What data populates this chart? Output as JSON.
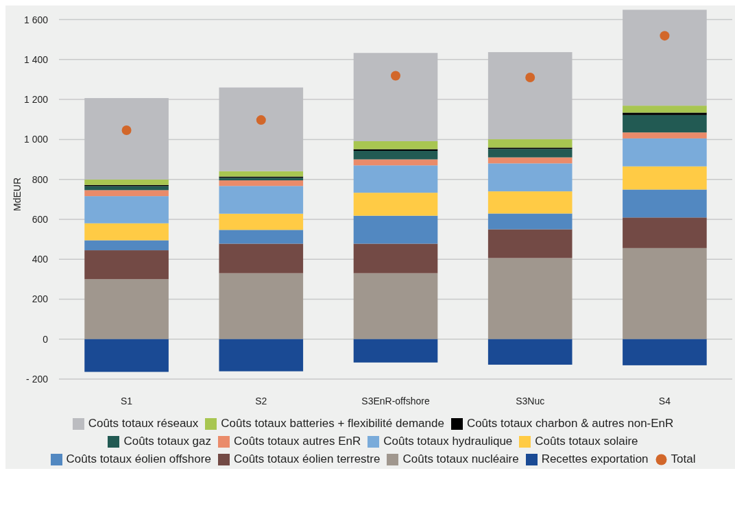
{
  "chart_data": {
    "type": "bar",
    "stacked": true,
    "ylabel": "MdEUR",
    "categories": [
      "S1",
      "S2",
      "S3EnR-offshore",
      "S3Nuc",
      "S4"
    ],
    "ylim": [
      -200,
      1650
    ],
    "yticks": [
      {
        "value": -200,
        "label": "- 200"
      },
      0,
      200,
      400,
      600,
      800,
      {
        "value": 1000,
        "label": "1 000"
      },
      {
        "value": 1200,
        "label": "1 200"
      },
      {
        "value": 1400,
        "label": "1 400"
      },
      {
        "value": 1600,
        "label": "1 600"
      }
    ],
    "grid": "y",
    "legend": "bottom",
    "series": [
      {
        "name": "Coûts totaux nucléaire",
        "color": "#a0978e",
        "values": [
          300,
          330,
          330,
          406,
          456
        ]
      },
      {
        "name": "Coûts totaux éolien terrestre",
        "color": "#734a45",
        "values": [
          145,
          148,
          148,
          144,
          153
        ]
      },
      {
        "name": "Coûts totaux éolien offshore",
        "color": "#5288c1",
        "values": [
          50,
          69,
          140,
          79,
          140
        ]
      },
      {
        "name": "Coûts totaux solaire",
        "color": "#ffcb45",
        "values": [
          85,
          81,
          115,
          111,
          116
        ]
      },
      {
        "name": "Coûts totaux hydraulique",
        "color": "#7aabda",
        "values": [
          136,
          139,
          137,
          140,
          140
        ]
      },
      {
        "name": "Coûts totaux autres EnR",
        "color": "#ea8b6a",
        "values": [
          30,
          28,
          30,
          30,
          30
        ]
      },
      {
        "name": "Coûts totaux gaz",
        "color": "#225a53",
        "values": [
          20,
          13,
          43,
          42,
          87
        ]
      },
      {
        "name": "Coûts totaux charbon & autres non-EnR",
        "color": "#000000",
        "values": [
          6,
          6,
          8,
          7,
          12
        ]
      },
      {
        "name": "Coûts totaux batteries + flexibilité demande",
        "color": "#a8c651",
        "values": [
          27,
          27,
          40,
          42,
          35
        ]
      },
      {
        "name": "Coûts totaux réseaux",
        "color": "#bbbcc0",
        "values": [
          408,
          419,
          442,
          436,
          480
        ]
      },
      {
        "name": "Recettes exportation",
        "color": "#1a4a94",
        "values": [
          -164,
          -161,
          -117,
          -128,
          -131
        ]
      },
      {
        "name": "Total",
        "type": "scatter",
        "marker": "circle",
        "color": "#d2672a",
        "values": [
          1046,
          1097,
          1319,
          1310,
          1519
        ]
      }
    ]
  }
}
